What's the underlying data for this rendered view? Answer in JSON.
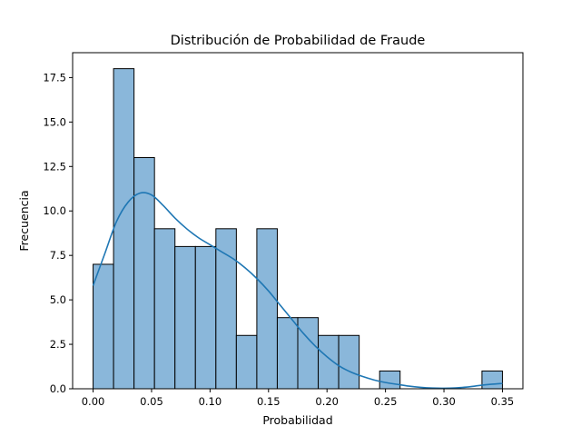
{
  "chart_data": {
    "type": "bar",
    "title": "Distribución de Probabilidad de Fraude",
    "xlabel": "Probabilidad",
    "ylabel": "Frecuencia",
    "xlim": [
      -0.0175,
      0.3675
    ],
    "ylim": [
      0,
      18.9
    ],
    "xticks": [
      0.0,
      0.05,
      0.1,
      0.15,
      0.2,
      0.25,
      0.3,
      0.35
    ],
    "xtick_labels": [
      "0.00",
      "0.05",
      "0.10",
      "0.15",
      "0.20",
      "0.25",
      "0.30",
      "0.35"
    ],
    "yticks": [
      0,
      2.5,
      5,
      7.5,
      10,
      12.5,
      15,
      17.5
    ],
    "ytick_labels": [
      "0.0",
      "2.5",
      "5.0",
      "7.5",
      "10.0",
      "12.5",
      "15.0",
      "17.5"
    ],
    "bins": {
      "start": 0.0,
      "width": 0.0175,
      "counts": [
        7,
        18,
        13,
        9,
        8,
        8,
        9,
        3,
        9,
        4,
        4,
        3,
        3,
        0,
        1,
        0,
        0,
        0,
        0,
        1
      ]
    },
    "kde": {
      "x": [
        0.0,
        0.01,
        0.02,
        0.03,
        0.04,
        0.05,
        0.06,
        0.07,
        0.08,
        0.09,
        0.1,
        0.11,
        0.12,
        0.13,
        0.14,
        0.15,
        0.16,
        0.17,
        0.18,
        0.19,
        0.2,
        0.21,
        0.22,
        0.23,
        0.24,
        0.25,
        0.26,
        0.27,
        0.28,
        0.29,
        0.3,
        0.31,
        0.32,
        0.33,
        0.34,
        0.35
      ],
      "y": [
        5.8,
        7.6,
        9.4,
        10.5,
        11.0,
        10.9,
        10.3,
        9.6,
        9.0,
        8.5,
        8.1,
        7.7,
        7.3,
        6.8,
        6.2,
        5.5,
        4.7,
        3.9,
        3.1,
        2.4,
        1.8,
        1.3,
        0.95,
        0.7,
        0.5,
        0.35,
        0.25,
        0.15,
        0.08,
        0.04,
        0.03,
        0.05,
        0.1,
        0.18,
        0.25,
        0.3
      ]
    },
    "grid": false,
    "colors": {
      "bar_fill": "#8ab7da",
      "bar_edge": "#000000",
      "kde_line": "#1f77b4"
    }
  }
}
